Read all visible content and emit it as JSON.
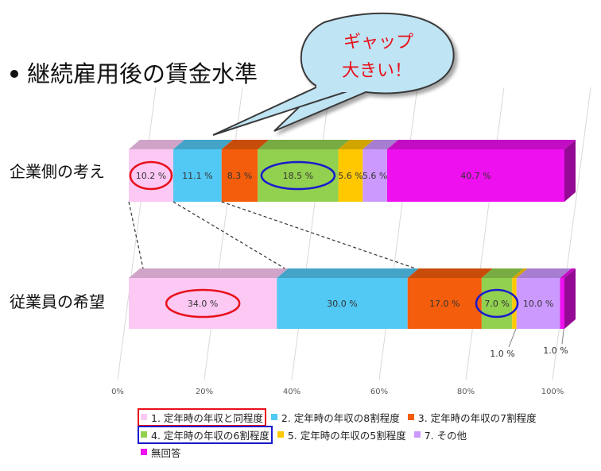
{
  "heading": "継続雇用後の賃金水準",
  "callout": {
    "line1": "ギャップ",
    "line2": "大きい！",
    "color": "#e8101a"
  },
  "chart_data": {
    "type": "bar",
    "orientation": "horizontal",
    "stacked": true,
    "percent": true,
    "categories": [
      "企業側の考え",
      "従業員の希望"
    ],
    "series": [
      {
        "name": "1. 定年時の年収と同程度",
        "color": "#fcc8f4",
        "values": [
          10.2,
          34.0
        ]
      },
      {
        "name": "2. 定年時の年収の8割程度",
        "color": "#52c8f4",
        "values": [
          11.1,
          30.0
        ]
      },
      {
        "name": "3. 定年時の年収の7割程度",
        "color": "#f45d0c",
        "values": [
          8.3,
          17.0
        ]
      },
      {
        "name": "4. 定年時の年収の6割程度",
        "color": "#92d050",
        "values": [
          18.5,
          7.0
        ]
      },
      {
        "name": "5. 定年時の年収の5割程度",
        "color": "#ffc800",
        "values": [
          5.6,
          1.0
        ]
      },
      {
        "name": "7. その他",
        "color": "#cc99ff",
        "values": [
          5.6,
          10.0
        ]
      },
      {
        "name": "無回答",
        "color": "#ee10ee",
        "values": [
          40.7,
          1.0
        ]
      }
    ],
    "data_labels": [
      [
        "10.2 %",
        "11.1 %",
        "8.3 %",
        "18.5 %",
        "5.6 %",
        "5.6 %",
        "40.7 %"
      ],
      [
        "34.0 %",
        "30.0 %",
        "17.0 %",
        "7.0 %",
        "1.0 %",
        "10.0 %",
        "1.0 %"
      ]
    ],
    "x_ticks": [
      "0%",
      "20%",
      "40%",
      "60%",
      "80%",
      "100%"
    ],
    "xlim": [
      0,
      100
    ],
    "grid": true,
    "legend_position": "bottom",
    "highlights": [
      {
        "bar": 0,
        "series": 0,
        "color": "#e8101a"
      },
      {
        "bar": 1,
        "series": 0,
        "color": "#e8101a"
      },
      {
        "bar": 0,
        "series": 3,
        "color": "#1a1acc"
      },
      {
        "bar": 1,
        "series": 3,
        "color": "#1a1acc"
      }
    ]
  }
}
